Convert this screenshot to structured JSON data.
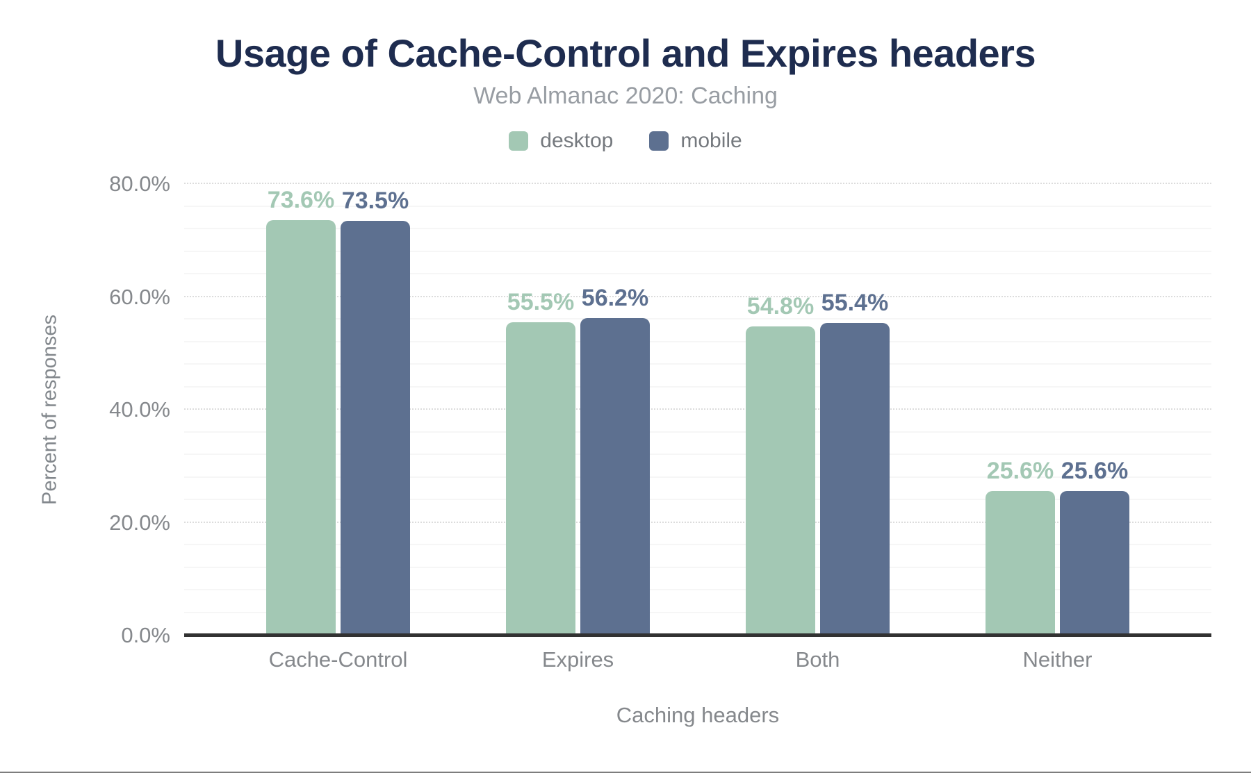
{
  "chart_data": {
    "type": "bar",
    "title": "Usage of Cache-Control and Expires headers",
    "subtitle": "Web Almanac 2020: Caching",
    "xlabel": "Caching headers",
    "ylabel": "Percent of responses",
    "categories": [
      "Cache-Control",
      "Expires",
      "Both",
      "Neither"
    ],
    "series": [
      {
        "name": "desktop",
        "color": "#a3c8b4",
        "values": [
          73.6,
          55.5,
          54.8,
          25.6
        ],
        "labels": [
          "73.6%",
          "55.5%",
          "54.8%",
          "25.6%"
        ]
      },
      {
        "name": "mobile",
        "color": "#5d7090",
        "values": [
          73.5,
          56.2,
          55.4,
          25.6
        ],
        "labels": [
          "73.5%",
          "56.2%",
          "55.4%",
          "25.6%"
        ]
      }
    ],
    "ylim": [
      0,
      80
    ],
    "yticks": {
      "values": [
        0,
        20,
        40,
        60,
        80
      ],
      "labels": [
        "0.0%",
        "20.0%",
        "40.0%",
        "60.0%",
        "80.0%"
      ]
    },
    "grid": {
      "major_interval": 20,
      "minor_interval": 4,
      "major_style": "dotted",
      "axis_line_color": "#323232"
    },
    "legend_position": "top"
  }
}
